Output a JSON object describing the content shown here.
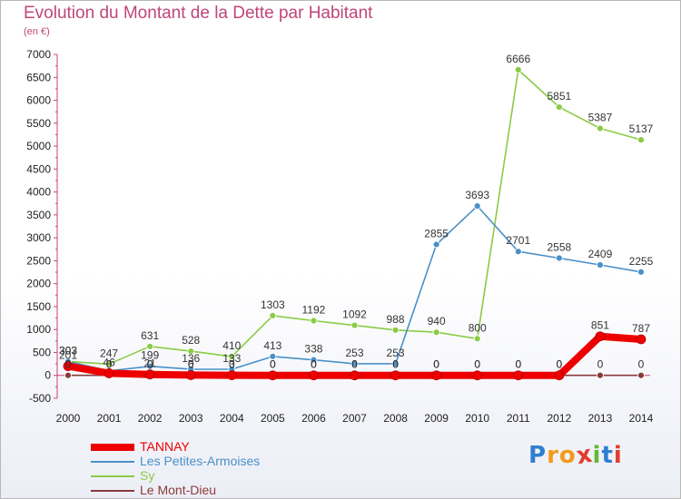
{
  "title": "Evolution du Montant de la Dette par Habitant",
  "subtitle": "(en €)",
  "chart_data": {
    "type": "line",
    "title": "Evolution du Montant de la Dette par Habitant",
    "ylabel": "(en €)",
    "x": [
      "2000",
      "2001",
      "2002",
      "2003",
      "2004",
      "2005",
      "2006",
      "2007",
      "2008",
      "2009",
      "2010",
      "2011",
      "2012",
      "2013",
      "2014"
    ],
    "yticks": [
      "-500",
      "0",
      "500",
      "1000",
      "1500",
      "2000",
      "2500",
      "3000",
      "3500",
      "4000",
      "4500",
      "5000",
      "5500",
      "6000",
      "6500",
      "7000"
    ],
    "ylim": [
      -500,
      7000
    ],
    "grid": false,
    "legend_position": "bottom-left",
    "series": [
      {
        "name": "TANNAY",
        "color": "#ee0000",
        "values": [
          201,
          46,
          21,
          6,
          3,
          0,
          0,
          0,
          0,
          0,
          0,
          0,
          0,
          851,
          787
        ],
        "labels": [
          "201",
          "46",
          "21",
          "6",
          "3",
          "0",
          "0",
          "0",
          "0",
          "0",
          "0",
          "0",
          "0",
          "851",
          "787"
        ]
      },
      {
        "name": "Les Petites-Armoises",
        "color": "#4a90c8",
        "values": [
          303,
          98,
          199,
          136,
          133,
          413,
          338,
          253,
          253,
          2855,
          3693,
          2701,
          2558,
          2409,
          2255
        ],
        "labels": [
          "303",
          "",
          "199",
          "136",
          "133",
          "413",
          "338",
          "253",
          "253",
          "2855",
          "3693",
          "2701",
          "2558",
          "2409",
          "2255"
        ]
      },
      {
        "name": "Sy",
        "color": "#8acb45",
        "values": [
          303,
          247,
          631,
          528,
          410,
          1303,
          1192,
          1092,
          988,
          940,
          800,
          6666,
          5851,
          5387,
          5137
        ],
        "labels": [
          "303",
          "247",
          "631",
          "528",
          "410",
          "1303",
          "1192",
          "1092",
          "988",
          "940",
          "800",
          "6666",
          "5851",
          "5387",
          "5137"
        ]
      },
      {
        "name": "Le Mont-Dieu",
        "color": "#8b3a3a",
        "values": [
          0,
          0,
          0,
          0,
          0,
          0,
          0,
          0,
          0,
          0,
          0,
          0,
          0,
          0,
          0
        ],
        "labels": [
          "0",
          "0",
          "0",
          "0",
          "0",
          "0",
          "0",
          "0",
          "0",
          "0",
          "0",
          "0",
          "0",
          "0",
          "0"
        ]
      }
    ]
  },
  "legend": [
    {
      "label": "TANNAY",
      "color": "#ee0000",
      "thickness": 8
    },
    {
      "label": "Les Petites-Armoises",
      "color": "#4a90c8",
      "thickness": 2
    },
    {
      "label": "Sy",
      "color": "#8acb45",
      "thickness": 2
    },
    {
      "label": "Le Mont-Dieu",
      "color": "#8b3a3a",
      "thickness": 2
    }
  ],
  "logo": {
    "letters": [
      "P",
      "r",
      "o",
      "x",
      "i",
      "t",
      "i"
    ],
    "colors": [
      "#2f7fd1",
      "#f29a1d",
      "#f29a1d",
      "#e33b2d",
      "#5fb83a",
      "#2f7fd1",
      "#e33b2d"
    ]
  }
}
